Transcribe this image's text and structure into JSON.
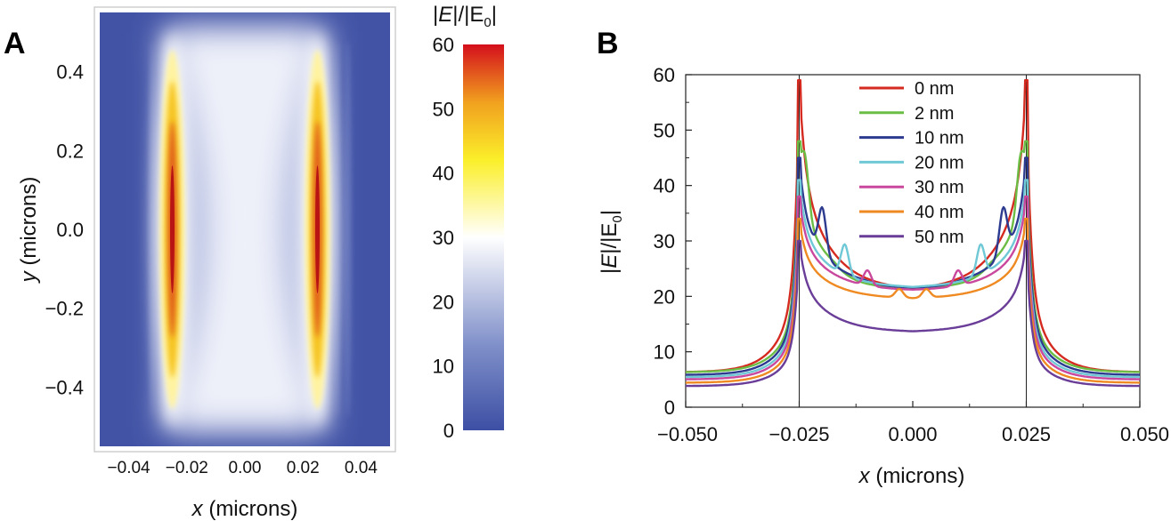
{
  "chart_data": [
    {
      "panel": "A",
      "type": "heatmap",
      "xlabel": "x (microns)",
      "ylabel": "y (microns)",
      "xlim": [
        -0.05,
        0.05
      ],
      "ylim": [
        -0.55,
        0.55
      ],
      "x_ticks": [
        "−0.04",
        "−0.02",
        "0.00",
        "0.02",
        "0.04"
      ],
      "x_tick_values": [
        -0.04,
        -0.02,
        0.0,
        0.02,
        0.04
      ],
      "y_ticks": [
        "0.4",
        "0.2",
        "0.0",
        "−0.2",
        "−0.4"
      ],
      "y_tick_values": [
        0.4,
        0.2,
        0.0,
        -0.2,
        -0.4
      ],
      "hotspots": [
        {
          "x": -0.025,
          "ymin": -0.5,
          "ymax": 0.5,
          "peak": 60
        },
        {
          "x": 0.025,
          "ymin": -0.5,
          "ymax": 0.5,
          "peak": 60
        }
      ],
      "colorbar": {
        "title_prefix": "|",
        "title_italic": "E",
        "title_mid": "|/|E",
        "title_sub": "0",
        "title_suffix": "|",
        "range": [
          0,
          60
        ],
        "ticks": [
          "60",
          "50",
          "40",
          "30",
          "20",
          "10",
          "0"
        ],
        "tick_values": [
          60,
          50,
          40,
          30,
          20,
          10,
          0
        ],
        "colors": [
          "#3d4fa4",
          "#7f8fc9",
          "#ffffff",
          "#fbef2a",
          "#f1a11f",
          "#d40f1c"
        ]
      }
    },
    {
      "panel": "B",
      "type": "line",
      "xlabel": "x (microns)",
      "ylabel_prefix": "|",
      "ylabel_italic": "E",
      "ylabel_mid": "|/|E",
      "ylabel_sub": "0",
      "ylabel_suffix": "|",
      "xlim": [
        -0.05,
        0.05
      ],
      "ylim": [
        0,
        60
      ],
      "x_ticks": [
        "−0.050",
        "−0.025",
        "0.000",
        "0.025",
        "0.050"
      ],
      "x_tick_values": [
        -0.05,
        -0.025,
        0.0,
        0.025,
        0.05
      ],
      "y_ticks": [
        "60",
        "50",
        "40",
        "30",
        "20",
        "10",
        "0"
      ],
      "y_tick_values": [
        60,
        50,
        40,
        30,
        20,
        10,
        0
      ],
      "vlines": [
        -0.025,
        0.025
      ],
      "series": [
        {
          "name": "0 nm",
          "color": "#d42a20",
          "peak": 59,
          "base_edge": 6.3,
          "center": 21.0,
          "shoulder": null,
          "shoulder_dx": 0
        },
        {
          "name": "2 nm",
          "color": "#6bbd45",
          "peak": 48,
          "base_edge": 6.3,
          "center": 21.5,
          "shoulder": 47,
          "shoulder_dx": 0.001
        },
        {
          "name": "10 nm",
          "color": "#2c3a8f",
          "peak": 45,
          "base_edge": 5.8,
          "center": 21.5,
          "shoulder": 37,
          "shoulder_dx": 0.005
        },
        {
          "name": "20 nm",
          "color": "#6fc8d6",
          "peak": 41,
          "base_edge": 5.4,
          "center": 21.5,
          "shoulder": 30,
          "shoulder_dx": 0.01
        },
        {
          "name": "30 nm",
          "color": "#c9489e",
          "peak": 38,
          "base_edge": 5.0,
          "center": 21.0,
          "shoulder": 25,
          "shoulder_dx": 0.015
        },
        {
          "name": "40 nm",
          "color": "#ef8a22",
          "peak": 34,
          "base_edge": 4.4,
          "center": 19.5,
          "shoulder": 21.5,
          "shoulder_dx": 0.022
        },
        {
          "name": "50 nm",
          "color": "#6a3d98",
          "peak": 30,
          "base_edge": 3.8,
          "center": 13.5,
          "shoulder": null,
          "shoulder_dx": 0
        }
      ]
    }
  ]
}
